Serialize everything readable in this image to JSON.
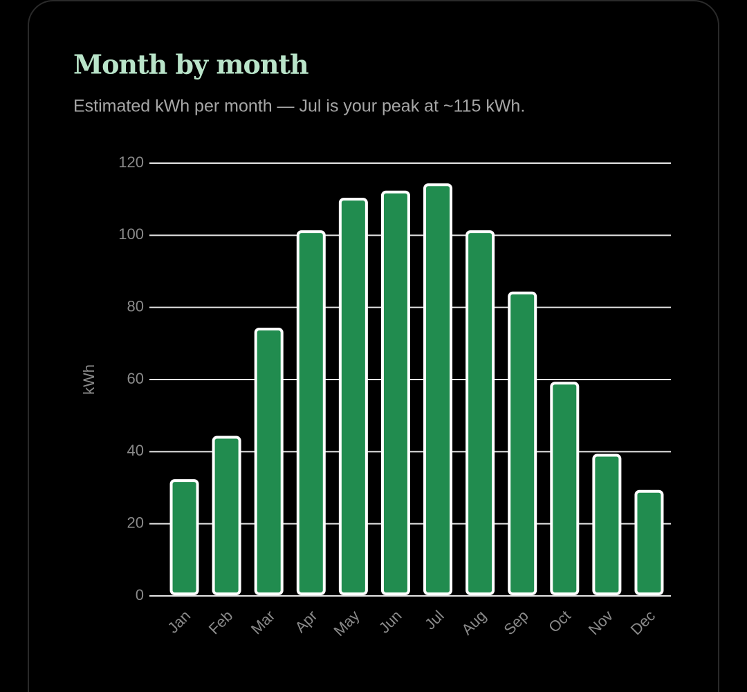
{
  "chart_data": {
    "type": "bar",
    "title": "Month by month",
    "subtitle": "Estimated kWh per month — Jul is your peak at ~115 kWh.",
    "y_label": "kWh",
    "categories": [
      "Jan",
      "Feb",
      "Mar",
      "Apr",
      "May",
      "Jun",
      "Jul",
      "Aug",
      "Sep",
      "Oct",
      "Nov",
      "Dec"
    ],
    "values": [
      32,
      44,
      74,
      101,
      110,
      112,
      114,
      101,
      84,
      59,
      39,
      29
    ],
    "color": "#218c4f",
    "ylim": [
      0,
      120
    ],
    "yticks": [
      0,
      20,
      40,
      60,
      80,
      100,
      120
    ],
    "grid": true
  }
}
